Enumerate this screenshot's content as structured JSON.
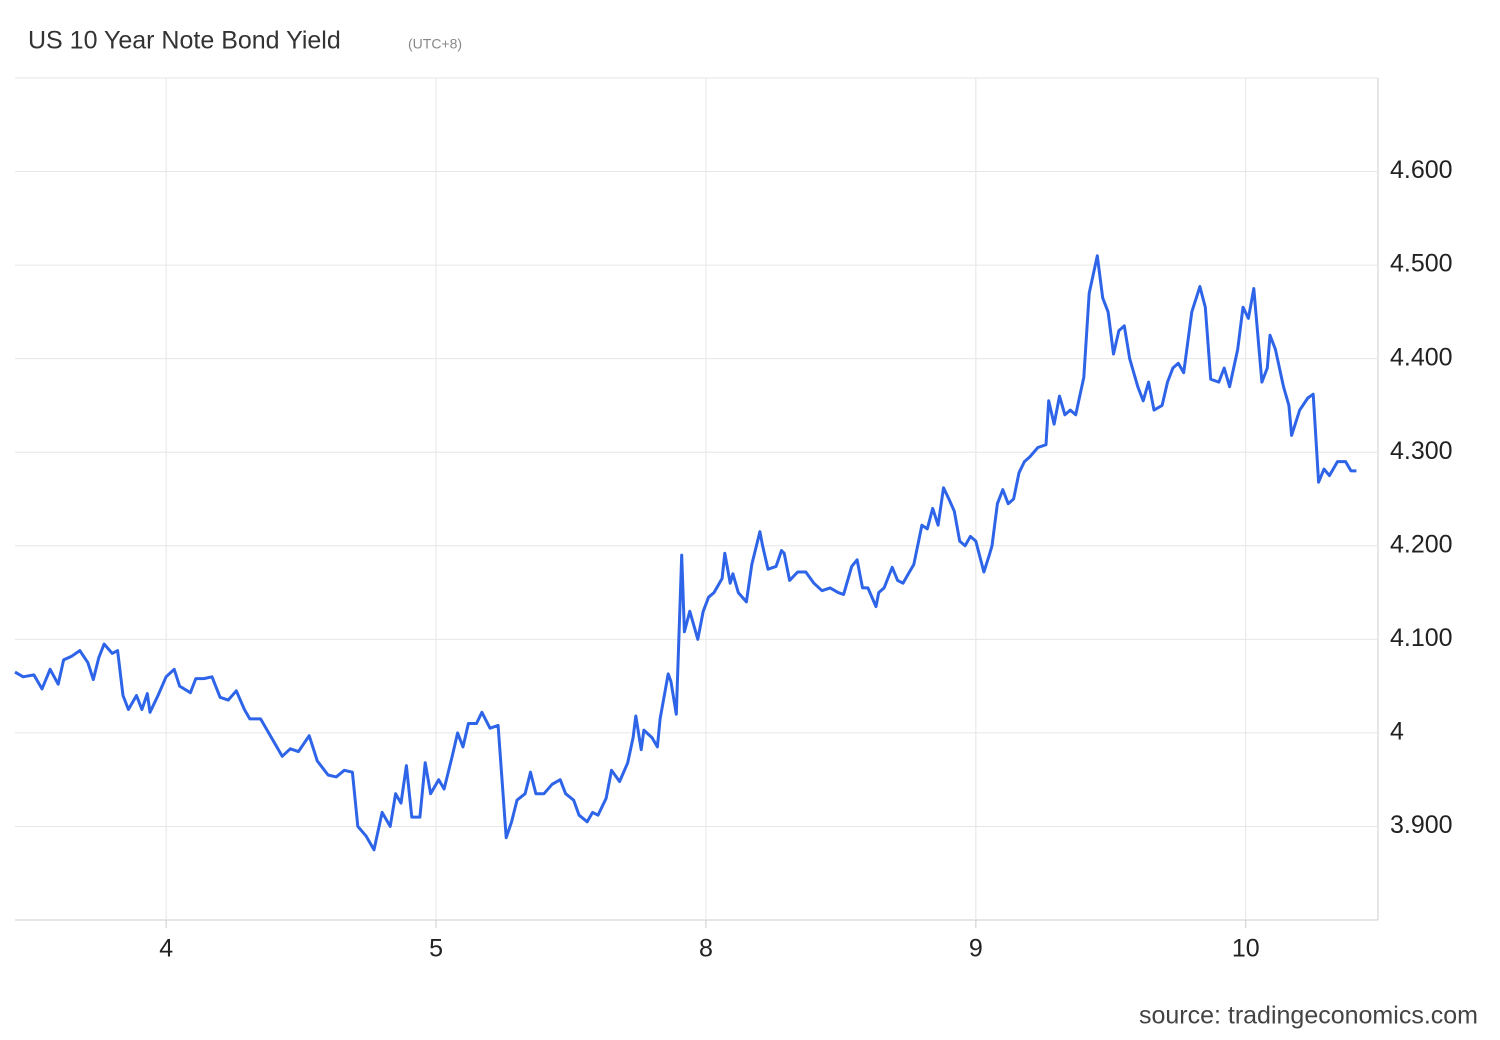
{
  "chart_data": {
    "type": "line",
    "title": "US 10 Year Note Bond Yield",
    "subtitle": "(UTC+8)",
    "source": "source: tradingeconomics.com",
    "xlim": [
      -0.56,
      4.49
    ],
    "xticks": [
      {
        "value": 0,
        "label": "4"
      },
      {
        "value": 1,
        "label": "5"
      },
      {
        "value": 2,
        "label": "8"
      },
      {
        "value": 3,
        "label": "9"
      },
      {
        "value": 4,
        "label": "10"
      }
    ],
    "ylim": [
      3.8,
      4.7
    ],
    "yticks": [
      {
        "value": 3.9,
        "label": "3.900"
      },
      4,
      {
        "value": 4.1,
        "label": "4.100"
      },
      {
        "value": 4.2,
        "label": "4.200"
      },
      {
        "value": 4.3,
        "label": "4.300"
      },
      {
        "value": 4.4,
        "label": "4.400"
      },
      {
        "value": 4.5,
        "label": "4.500"
      },
      {
        "value": 4.6,
        "label": "4.600"
      }
    ],
    "grid": true,
    "color": "#2e64e8",
    "x": [
      -0.56,
      -0.53,
      -0.49,
      -0.46,
      -0.43,
      -0.4,
      -0.38,
      -0.35,
      -0.32,
      -0.29,
      -0.27,
      -0.25,
      -0.23,
      -0.2,
      -0.18,
      -0.16,
      -0.14,
      -0.11,
      -0.09,
      -0.07,
      -0.06,
      -0.03,
      0.0,
      0.03,
      0.05,
      0.09,
      0.11,
      0.14,
      0.17,
      0.2,
      0.23,
      0.26,
      0.29,
      0.31,
      0.35,
      0.38,
      0.41,
      0.43,
      0.46,
      0.49,
      0.53,
      0.56,
      0.6,
      0.63,
      0.66,
      0.69,
      0.71,
      0.74,
      0.77,
      0.8,
      0.83,
      0.85,
      0.87,
      0.89,
      0.91,
      0.94,
      0.96,
      0.98,
      1.01,
      1.03,
      1.06,
      1.08,
      1.1,
      1.12,
      1.15,
      1.17,
      1.2,
      1.23,
      1.26,
      1.28,
      1.3,
      1.33,
      1.35,
      1.37,
      1.4,
      1.43,
      1.46,
      1.48,
      1.51,
      1.53,
      1.56,
      1.58,
      1.6,
      1.63,
      1.65,
      1.68,
      1.71,
      1.73,
      1.74,
      1.76,
      1.77,
      1.8,
      1.82,
      1.83,
      1.86,
      1.87,
      1.89,
      1.91,
      1.92,
      1.94,
      1.97,
      1.99,
      2.01,
      2.03,
      2.06,
      2.07,
      2.09,
      2.1,
      2.12,
      2.15,
      2.17,
      2.2,
      2.21,
      2.23,
      2.26,
      2.28,
      2.29,
      2.31,
      2.34,
      2.37,
      2.4,
      2.43,
      2.46,
      2.49,
      2.51,
      2.54,
      2.56,
      2.58,
      2.6,
      2.63,
      2.64,
      2.66,
      2.69,
      2.71,
      2.73,
      2.75,
      2.77,
      2.8,
      2.82,
      2.84,
      2.86,
      2.88,
      2.9,
      2.92,
      2.94,
      2.96,
      2.98,
      3.0,
      3.03,
      3.05,
      3.06,
      3.08,
      3.1,
      3.12,
      3.14,
      3.16,
      3.18,
      3.2,
      3.23,
      3.26,
      3.27,
      3.29,
      3.31,
      3.33,
      3.35,
      3.37,
      3.4,
      3.42,
      3.45,
      3.47,
      3.49,
      3.51,
      3.53,
      3.55,
      3.57,
      3.6,
      3.62,
      3.64,
      3.66,
      3.69,
      3.71,
      3.73,
      3.75,
      3.77,
      3.8,
      3.83,
      3.85,
      3.87,
      3.9,
      3.92,
      3.94,
      3.97,
      3.99,
      4.01,
      4.03,
      4.06,
      4.08,
      4.09,
      4.11,
      4.14,
      4.16,
      4.17,
      4.2,
      4.23,
      4.25,
      4.27,
      4.29,
      4.31,
      4.34,
      4.37,
      4.39,
      4.41
    ],
    "values": [
      4.065,
      4.06,
      4.062,
      4.047,
      4.068,
      4.052,
      4.078,
      4.082,
      4.088,
      4.075,
      4.057,
      4.08,
      4.095,
      4.085,
      4.088,
      4.04,
      4.025,
      4.04,
      4.025,
      4.042,
      4.022,
      4.04,
      4.06,
      4.068,
      4.05,
      4.043,
      4.058,
      4.058,
      4.06,
      4.038,
      4.035,
      4.045,
      4.025,
      4.015,
      4.015,
      4.0,
      3.985,
      3.975,
      3.983,
      3.98,
      3.997,
      3.97,
      3.955,
      3.953,
      3.96,
      3.958,
      3.9,
      3.89,
      3.875,
      3.915,
      3.9,
      3.935,
      3.925,
      3.965,
      3.91,
      3.91,
      3.968,
      3.935,
      3.95,
      3.94,
      3.975,
      4.0,
      3.985,
      4.01,
      4.01,
      4.022,
      4.005,
      4.008,
      3.888,
      3.905,
      3.928,
      3.935,
      3.958,
      3.935,
      3.935,
      3.945,
      3.95,
      3.935,
      3.928,
      3.912,
      3.905,
      3.915,
      3.912,
      3.93,
      3.96,
      3.948,
      3.968,
      3.995,
      4.018,
      3.982,
      4.003,
      3.995,
      3.985,
      4.015,
      4.063,
      4.055,
      4.02,
      4.19,
      4.108,
      4.13,
      4.1,
      4.13,
      4.145,
      4.15,
      4.165,
      4.192,
      4.16,
      4.17,
      4.15,
      4.14,
      4.18,
      4.215,
      4.2,
      4.175,
      4.178,
      4.195,
      4.192,
      4.163,
      4.172,
      4.172,
      4.16,
      4.152,
      4.155,
      4.15,
      4.148,
      4.178,
      4.185,
      4.155,
      4.155,
      4.135,
      4.15,
      4.155,
      4.177,
      4.163,
      4.16,
      4.17,
      4.18,
      4.222,
      4.218,
      4.24,
      4.222,
      4.262,
      4.25,
      4.237,
      4.205,
      4.2,
      4.21,
      4.205,
      4.172,
      4.19,
      4.2,
      4.245,
      4.26,
      4.245,
      4.25,
      4.278,
      4.29,
      4.295,
      4.305,
      4.308,
      4.355,
      4.33,
      4.36,
      4.34,
      4.345,
      4.34,
      4.38,
      4.47,
      4.51,
      4.465,
      4.45,
      4.405,
      4.43,
      4.435,
      4.4,
      4.37,
      4.355,
      4.375,
      4.345,
      4.35,
      4.375,
      4.39,
      4.395,
      4.385,
      4.45,
      4.477,
      4.455,
      4.378,
      4.375,
      4.39,
      4.37,
      4.41,
      4.455,
      4.443,
      4.475,
      4.375,
      4.39,
      4.425,
      4.41,
      4.37,
      4.35,
      4.318,
      4.345,
      4.358,
      4.362,
      4.268,
      4.282,
      4.275,
      4.29,
      4.29,
      4.28,
      4.28
    ]
  }
}
